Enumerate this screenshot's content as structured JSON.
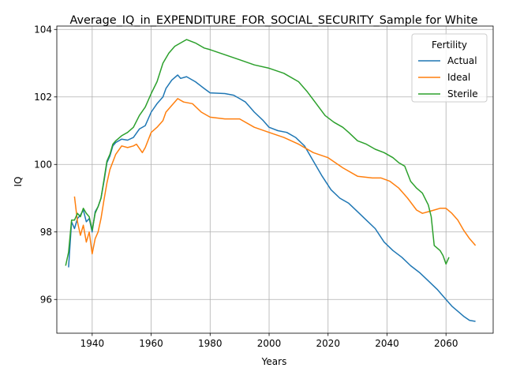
{
  "chart_data": {
    "type": "line",
    "title": "Average_IQ_in_EXPENDITURE_FOR_SOCIAL_SECURITY_Sample for White",
    "xlabel": "Years",
    "ylabel": "IQ",
    "xlim": [
      1928,
      2076
    ],
    "ylim": [
      95.0,
      104.1
    ],
    "xticks": [
      1940,
      1960,
      1980,
      2000,
      2020,
      2040,
      2060
    ],
    "yticks": [
      96,
      98,
      100,
      102,
      104
    ],
    "grid": true,
    "legend": {
      "title": "Fertility",
      "placement": "top-right"
    },
    "series": [
      {
        "name": "Actual",
        "color": "#1f77b4",
        "points": [
          [
            1932,
            96.95
          ],
          [
            1933,
            98.3
          ],
          [
            1934,
            98.1
          ],
          [
            1935,
            98.4
          ],
          [
            1936,
            98.5
          ],
          [
            1937,
            98.65
          ],
          [
            1938,
            98.3
          ],
          [
            1939,
            98.4
          ],
          [
            1940,
            98.0
          ],
          [
            1941,
            98.6
          ],
          [
            1942,
            98.75
          ],
          [
            1943,
            99.0
          ],
          [
            1944,
            99.5
          ],
          [
            1945,
            100.05
          ],
          [
            1946,
            100.25
          ],
          [
            1947,
            100.55
          ],
          [
            1948,
            100.65
          ],
          [
            1949,
            100.7
          ],
          [
            1950,
            100.75
          ],
          [
            1952,
            100.72
          ],
          [
            1954,
            100.8
          ],
          [
            1956,
            101.05
          ],
          [
            1958,
            101.15
          ],
          [
            1960,
            101.55
          ],
          [
            1962,
            101.8
          ],
          [
            1964,
            102.0
          ],
          [
            1965,
            102.25
          ],
          [
            1967,
            102.5
          ],
          [
            1969,
            102.65
          ],
          [
            1970,
            102.55
          ],
          [
            1972,
            102.6
          ],
          [
            1975,
            102.45
          ],
          [
            1978,
            102.25
          ],
          [
            1980,
            102.12
          ],
          [
            1985,
            102.1
          ],
          [
            1988,
            102.05
          ],
          [
            1990,
            101.95
          ],
          [
            1992,
            101.85
          ],
          [
            1995,
            101.55
          ],
          [
            1998,
            101.3
          ],
          [
            2000,
            101.1
          ],
          [
            2003,
            101.0
          ],
          [
            2006,
            100.95
          ],
          [
            2009,
            100.8
          ],
          [
            2012,
            100.55
          ],
          [
            2015,
            100.1
          ],
          [
            2018,
            99.65
          ],
          [
            2021,
            99.25
          ],
          [
            2024,
            99.0
          ],
          [
            2027,
            98.85
          ],
          [
            2030,
            98.6
          ],
          [
            2033,
            98.35
          ],
          [
            2036,
            98.1
          ],
          [
            2039,
            97.7
          ],
          [
            2042,
            97.45
          ],
          [
            2045,
            97.25
          ],
          [
            2048,
            97.0
          ],
          [
            2051,
            96.8
          ],
          [
            2054,
            96.55
          ],
          [
            2057,
            96.3
          ],
          [
            2060,
            96.0
          ],
          [
            2062,
            95.8
          ],
          [
            2064,
            95.65
          ],
          [
            2066,
            95.5
          ],
          [
            2068,
            95.38
          ],
          [
            2070,
            95.35
          ]
        ]
      },
      {
        "name": "Ideal",
        "color": "#ff7f0e",
        "points": [
          [
            1934,
            99.05
          ],
          [
            1935,
            98.3
          ],
          [
            1936,
            97.9
          ],
          [
            1937,
            98.2
          ],
          [
            1938,
            97.7
          ],
          [
            1939,
            98.0
          ],
          [
            1940,
            97.35
          ],
          [
            1941,
            97.8
          ],
          [
            1942,
            98.0
          ],
          [
            1943,
            98.4
          ],
          [
            1944,
            98.95
          ],
          [
            1945,
            99.45
          ],
          [
            1946,
            99.85
          ],
          [
            1948,
            100.3
          ],
          [
            1950,
            100.55
          ],
          [
            1952,
            100.5
          ],
          [
            1954,
            100.55
          ],
          [
            1955,
            100.6
          ],
          [
            1957,
            100.35
          ],
          [
            1958,
            100.5
          ],
          [
            1960,
            100.95
          ],
          [
            1962,
            101.1
          ],
          [
            1964,
            101.3
          ],
          [
            1965,
            101.55
          ],
          [
            1967,
            101.75
          ],
          [
            1969,
            101.95
          ],
          [
            1971,
            101.85
          ],
          [
            1974,
            101.8
          ],
          [
            1977,
            101.55
          ],
          [
            1980,
            101.4
          ],
          [
            1985,
            101.35
          ],
          [
            1990,
            101.35
          ],
          [
            1995,
            101.1
          ],
          [
            2000,
            100.95
          ],
          [
            2005,
            100.8
          ],
          [
            2010,
            100.6
          ],
          [
            2015,
            100.35
          ],
          [
            2020,
            100.2
          ],
          [
            2025,
            99.9
          ],
          [
            2030,
            99.65
          ],
          [
            2035,
            99.6
          ],
          [
            2038,
            99.6
          ],
          [
            2041,
            99.5
          ],
          [
            2044,
            99.3
          ],
          [
            2047,
            99.0
          ],
          [
            2050,
            98.65
          ],
          [
            2052,
            98.55
          ],
          [
            2054,
            98.6
          ],
          [
            2056,
            98.65
          ],
          [
            2058,
            98.7
          ],
          [
            2060,
            98.7
          ],
          [
            2062,
            98.55
          ],
          [
            2064,
            98.35
          ],
          [
            2066,
            98.05
          ],
          [
            2068,
            97.8
          ],
          [
            2070,
            97.6
          ]
        ]
      },
      {
        "name": "Sterile",
        "color": "#2ca02c",
        "points": [
          [
            1931,
            97.0
          ],
          [
            1932,
            97.4
          ],
          [
            1933,
            98.35
          ],
          [
            1934,
            98.35
          ],
          [
            1935,
            98.55
          ],
          [
            1936,
            98.45
          ],
          [
            1937,
            98.7
          ],
          [
            1938,
            98.55
          ],
          [
            1939,
            98.45
          ],
          [
            1940,
            98.05
          ],
          [
            1941,
            98.55
          ],
          [
            1942,
            98.75
          ],
          [
            1943,
            99.0
          ],
          [
            1944,
            99.55
          ],
          [
            1945,
            100.1
          ],
          [
            1946,
            100.3
          ],
          [
            1947,
            100.6
          ],
          [
            1948,
            100.7
          ],
          [
            1950,
            100.85
          ],
          [
            1952,
            100.95
          ],
          [
            1954,
            101.1
          ],
          [
            1956,
            101.45
          ],
          [
            1958,
            101.7
          ],
          [
            1960,
            102.1
          ],
          [
            1962,
            102.45
          ],
          [
            1964,
            103.0
          ],
          [
            1966,
            103.3
          ],
          [
            1968,
            103.5
          ],
          [
            1970,
            103.6
          ],
          [
            1972,
            103.7
          ],
          [
            1975,
            103.6
          ],
          [
            1978,
            103.45
          ],
          [
            1980,
            103.4
          ],
          [
            1985,
            103.25
          ],
          [
            1990,
            103.1
          ],
          [
            1995,
            102.95
          ],
          [
            2000,
            102.85
          ],
          [
            2005,
            102.7
          ],
          [
            2010,
            102.45
          ],
          [
            2013,
            102.15
          ],
          [
            2016,
            101.8
          ],
          [
            2019,
            101.45
          ],
          [
            2022,
            101.25
          ],
          [
            2025,
            101.1
          ],
          [
            2027,
            100.95
          ],
          [
            2030,
            100.7
          ],
          [
            2033,
            100.6
          ],
          [
            2036,
            100.45
          ],
          [
            2039,
            100.35
          ],
          [
            2042,
            100.2
          ],
          [
            2044,
            100.05
          ],
          [
            2046,
            99.95
          ],
          [
            2048,
            99.5
          ],
          [
            2050,
            99.3
          ],
          [
            2052,
            99.15
          ],
          [
            2054,
            98.8
          ],
          [
            2055,
            98.45
          ],
          [
            2056,
            97.6
          ],
          [
            2058,
            97.45
          ],
          [
            2059,
            97.3
          ],
          [
            2060,
            97.05
          ],
          [
            2061,
            97.25
          ]
        ]
      }
    ]
  }
}
